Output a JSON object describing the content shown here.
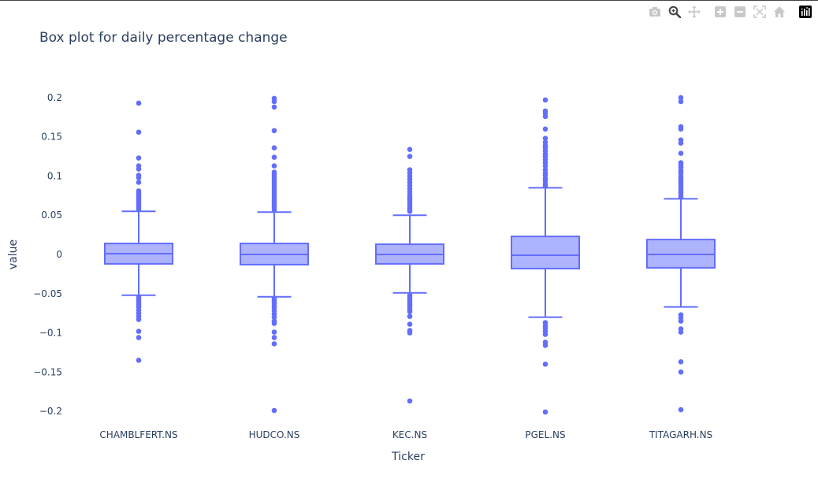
{
  "modebar": {
    "buttons": [
      {
        "icon": "camera-icon",
        "label": "Download plot as a png"
      },
      {
        "icon": "zoom-icon",
        "label": "Zoom"
      },
      {
        "icon": "pan-icon",
        "label": "Pan"
      },
      {
        "icon": "zoom-in-icon",
        "label": "Zoom in"
      },
      {
        "icon": "zoom-out-icon",
        "label": "Zoom out"
      },
      {
        "icon": "autoscale-icon",
        "label": "Autoscale"
      },
      {
        "icon": "home-icon",
        "label": "Reset axes"
      },
      {
        "icon": "plotly-logo-icon",
        "label": "Produced with Plotly"
      }
    ]
  },
  "chart_data": {
    "type": "box",
    "title": "Box plot for daily percentage change",
    "xlabel": "Ticker",
    "ylabel": "value",
    "ylim": [
      -0.205,
      0.205
    ],
    "yticks": [
      0.2,
      0.15,
      0.1,
      0.05,
      0,
      -0.05,
      -0.1,
      -0.15,
      -0.2
    ],
    "ytick_labels": [
      "0.2",
      "0.15",
      "0.1",
      "0.05",
      "0",
      "−0.05",
      "−0.1",
      "−0.15",
      "−0.2"
    ],
    "grid": false,
    "color": "#636efa",
    "fill_color": "#aeb3fd",
    "categories": [
      "CHAMBLFERT.NS",
      "HUDCO.NS",
      "KEC.NS",
      "PGEL.NS",
      "TITAGARH.NS"
    ],
    "boxes": [
      {
        "name": "CHAMBLFERT.NS",
        "lower_fence": -0.052,
        "q1": -0.012,
        "median": 0.001,
        "q3": 0.014,
        "upper_fence": 0.055,
        "outliers": [
          0.193,
          0.156,
          0.123,
          0.113,
          0.109,
          0.101,
          0.098,
          0.092,
          0.081,
          0.078,
          0.076,
          0.073,
          0.07,
          0.067,
          0.064,
          0.061,
          0.058,
          -0.055,
          -0.058,
          -0.061,
          -0.064,
          -0.067,
          -0.071,
          -0.075,
          -0.079,
          -0.083,
          -0.098,
          -0.106,
          -0.135
        ]
      },
      {
        "name": "HUDCO.NS",
        "lower_fence": -0.054,
        "q1": -0.013,
        "median": 0.0,
        "q3": 0.014,
        "upper_fence": 0.054,
        "outliers": [
          0.199,
          0.195,
          0.188,
          0.158,
          0.136,
          0.124,
          0.113,
          0.105,
          0.102,
          0.099,
          0.096,
          0.093,
          0.09,
          0.087,
          0.084,
          0.081,
          0.078,
          0.075,
          0.072,
          0.069,
          0.066,
          0.063,
          0.06,
          0.057,
          -0.056,
          -0.059,
          -0.062,
          -0.065,
          -0.068,
          -0.072,
          -0.076,
          -0.08,
          -0.085,
          -0.088,
          -0.099,
          -0.106,
          -0.114,
          -0.199
        ]
      },
      {
        "name": "KEC.NS",
        "lower_fence": -0.049,
        "q1": -0.012,
        "median": 0.0,
        "q3": 0.013,
        "upper_fence": 0.05,
        "outliers": [
          0.134,
          0.125,
          0.108,
          0.104,
          0.1,
          0.096,
          0.092,
          0.088,
          0.084,
          0.08,
          0.076,
          0.073,
          0.07,
          0.067,
          0.064,
          0.061,
          0.058,
          0.055,
          -0.052,
          -0.055,
          -0.058,
          -0.061,
          -0.064,
          -0.067,
          -0.07,
          -0.073,
          -0.079,
          -0.089,
          -0.097,
          -0.1,
          -0.187
        ]
      },
      {
        "name": "PGEL.NS",
        "lower_fence": -0.08,
        "q1": -0.018,
        "median": -0.001,
        "q3": 0.023,
        "upper_fence": 0.085,
        "outliers": [
          0.197,
          0.183,
          0.18,
          0.176,
          0.16,
          0.148,
          0.143,
          0.139,
          0.136,
          0.132,
          0.128,
          0.125,
          0.121,
          0.117,
          0.113,
          0.108,
          0.104,
          0.101,
          0.097,
          0.094,
          0.09,
          0.087,
          -0.087,
          -0.091,
          -0.094,
          -0.098,
          -0.102,
          -0.112,
          -0.116,
          -0.14,
          -0.201
        ]
      },
      {
        "name": "TITAGARH.NS",
        "lower_fence": -0.067,
        "q1": -0.017,
        "median": 0.0,
        "q3": 0.019,
        "upper_fence": 0.071,
        "outliers": [
          0.2,
          0.195,
          0.163,
          0.16,
          0.146,
          0.142,
          0.129,
          0.117,
          0.114,
          0.111,
          0.107,
          0.104,
          0.1,
          0.097,
          0.094,
          0.091,
          0.088,
          0.085,
          0.082,
          0.079,
          0.076,
          0.073,
          -0.077,
          -0.081,
          -0.085,
          -0.095,
          -0.099,
          -0.137,
          -0.15,
          -0.198
        ]
      }
    ]
  }
}
